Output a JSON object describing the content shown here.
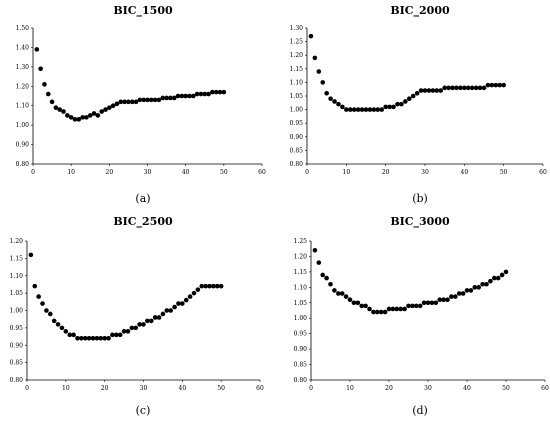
{
  "chart_data": [
    {
      "type": "scatter",
      "title": "BIC_1500",
      "caption": "(a)",
      "xlim": [
        0,
        60
      ],
      "ylim": [
        0.8,
        1.5
      ],
      "xticks": [
        "0",
        "10",
        "20",
        "30",
        "40",
        "50",
        "60"
      ],
      "yticks": [
        "0.80",
        "0.90",
        "1.00",
        "1.10",
        "1.20",
        "1.30",
        "1.40",
        "1.50"
      ],
      "x": [
        1,
        2,
        3,
        4,
        5,
        6,
        7,
        8,
        9,
        10,
        11,
        12,
        13,
        14,
        15,
        16,
        17,
        18,
        19,
        20,
        21,
        22,
        23,
        24,
        25,
        26,
        27,
        28,
        29,
        30,
        31,
        32,
        33,
        34,
        35,
        36,
        37,
        38,
        39,
        40,
        41,
        42,
        43,
        44,
        45,
        46,
        47,
        48,
        49,
        50
      ],
      "y": [
        1.39,
        1.29,
        1.21,
        1.16,
        1.12,
        1.09,
        1.08,
        1.07,
        1.05,
        1.04,
        1.03,
        1.03,
        1.04,
        1.04,
        1.05,
        1.06,
        1.05,
        1.07,
        1.08,
        1.09,
        1.1,
        1.11,
        1.12,
        1.12,
        1.12,
        1.12,
        1.12,
        1.13,
        1.13,
        1.13,
        1.13,
        1.13,
        1.13,
        1.14,
        1.14,
        1.14,
        1.14,
        1.15,
        1.15,
        1.15,
        1.15,
        1.15,
        1.16,
        1.16,
        1.16,
        1.16,
        1.17,
        1.17,
        1.17,
        1.17
      ]
    },
    {
      "type": "scatter",
      "title": "BIC_2000",
      "caption": "(b)",
      "xlim": [
        0,
        60
      ],
      "ylim": [
        0.8,
        1.3
      ],
      "xticks": [
        "0",
        "10",
        "20",
        "30",
        "40",
        "50",
        "60"
      ],
      "yticks": [
        "0.80",
        "0.85",
        "0.90",
        "0.95",
        "1.00",
        "1.05",
        "1.10",
        "1.15",
        "1.20",
        "1.25",
        "1.30"
      ],
      "x": [
        1,
        2,
        3,
        4,
        5,
        6,
        7,
        8,
        9,
        10,
        11,
        12,
        13,
        14,
        15,
        16,
        17,
        18,
        19,
        20,
        21,
        22,
        23,
        24,
        25,
        26,
        27,
        28,
        29,
        30,
        31,
        32,
        33,
        34,
        35,
        36,
        37,
        38,
        39,
        40,
        41,
        42,
        43,
        44,
        45,
        46,
        47,
        48,
        49,
        50
      ],
      "y": [
        1.27,
        1.19,
        1.14,
        1.1,
        1.06,
        1.04,
        1.03,
        1.02,
        1.01,
        1.0,
        1.0,
        1.0,
        1.0,
        1.0,
        1.0,
        1.0,
        1.0,
        1.0,
        1.0,
        1.01,
        1.01,
        1.01,
        1.02,
        1.02,
        1.03,
        1.04,
        1.05,
        1.06,
        1.07,
        1.07,
        1.07,
        1.07,
        1.07,
        1.07,
        1.08,
        1.08,
        1.08,
        1.08,
        1.08,
        1.08,
        1.08,
        1.08,
        1.08,
        1.08,
        1.08,
        1.09,
        1.09,
        1.09,
        1.09,
        1.09
      ]
    },
    {
      "type": "scatter",
      "title": "BIC_2500",
      "caption": "(c)",
      "xlim": [
        0,
        60
      ],
      "ylim": [
        0.8,
        1.2
      ],
      "xticks": [
        "0",
        "10",
        "20",
        "30",
        "40",
        "50",
        "60"
      ],
      "yticks": [
        "0.80",
        "0.85",
        "0.90",
        "0.95",
        "1.00",
        "1.05",
        "1.10",
        "1.15",
        "1.20"
      ],
      "x": [
        1,
        2,
        3,
        4,
        5,
        6,
        7,
        8,
        9,
        10,
        11,
        12,
        13,
        14,
        15,
        16,
        17,
        18,
        19,
        20,
        21,
        22,
        23,
        24,
        25,
        26,
        27,
        28,
        29,
        30,
        31,
        32,
        33,
        34,
        35,
        36,
        37,
        38,
        39,
        40,
        41,
        42,
        43,
        44,
        45,
        46,
        47,
        48,
        49,
        50
      ],
      "y": [
        1.16,
        1.07,
        1.04,
        1.02,
        1.0,
        0.99,
        0.97,
        0.96,
        0.95,
        0.94,
        0.93,
        0.93,
        0.92,
        0.92,
        0.92,
        0.92,
        0.92,
        0.92,
        0.92,
        0.92,
        0.92,
        0.93,
        0.93,
        0.93,
        0.94,
        0.94,
        0.95,
        0.95,
        0.96,
        0.96,
        0.97,
        0.97,
        0.98,
        0.98,
        0.99,
        1.0,
        1.0,
        1.01,
        1.02,
        1.02,
        1.03,
        1.04,
        1.05,
        1.06,
        1.07,
        1.07,
        1.07,
        1.07,
        1.07,
        1.07
      ]
    },
    {
      "type": "scatter",
      "title": "BIC_3000",
      "caption": "(d)",
      "xlim": [
        0,
        60
      ],
      "ylim": [
        0.8,
        1.25
      ],
      "xticks": [
        "0",
        "10",
        "20",
        "30",
        "40",
        "50",
        "60"
      ],
      "yticks": [
        "0.80",
        "0.85",
        "0.90",
        "0.95",
        "1.00",
        "1.05",
        "1.10",
        "1.15",
        "1.20",
        "1.25"
      ],
      "x": [
        1,
        2,
        3,
        4,
        5,
        6,
        7,
        8,
        9,
        10,
        11,
        12,
        13,
        14,
        15,
        16,
        17,
        18,
        19,
        20,
        21,
        22,
        23,
        24,
        25,
        26,
        27,
        28,
        29,
        30,
        31,
        32,
        33,
        34,
        35,
        36,
        37,
        38,
        39,
        40,
        41,
        42,
        43,
        44,
        45,
        46,
        47,
        48,
        49,
        50
      ],
      "y": [
        1.22,
        1.18,
        1.14,
        1.13,
        1.11,
        1.09,
        1.08,
        1.08,
        1.07,
        1.06,
        1.05,
        1.05,
        1.04,
        1.04,
        1.03,
        1.02,
        1.02,
        1.02,
        1.02,
        1.03,
        1.03,
        1.03,
        1.03,
        1.03,
        1.04,
        1.04,
        1.04,
        1.04,
        1.05,
        1.05,
        1.05,
        1.05,
        1.06,
        1.06,
        1.06,
        1.07,
        1.07,
        1.08,
        1.08,
        1.09,
        1.09,
        1.1,
        1.1,
        1.11,
        1.11,
        1.12,
        1.13,
        1.13,
        1.14,
        1.15
      ]
    }
  ]
}
